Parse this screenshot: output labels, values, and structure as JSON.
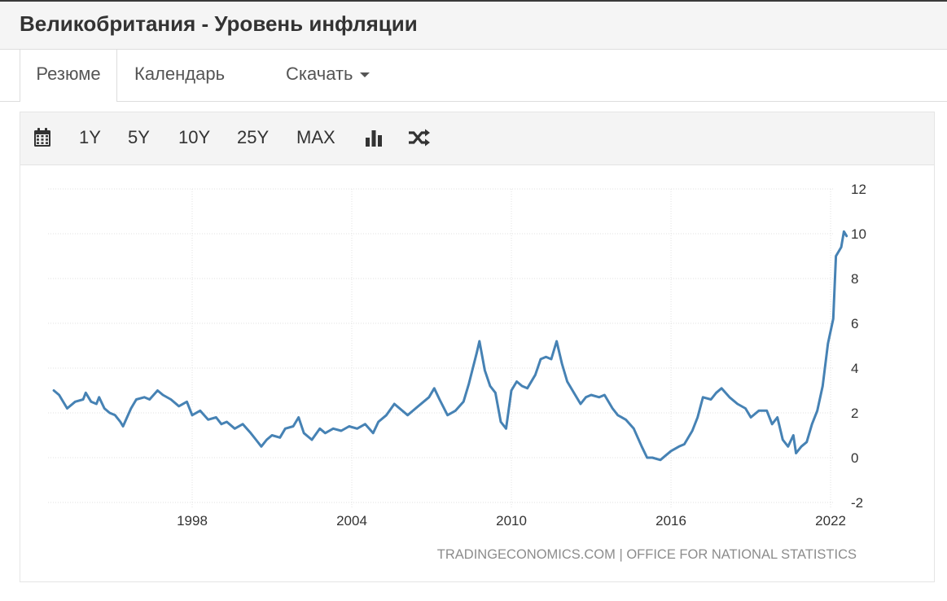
{
  "page": {
    "title": "Великобритания - Уровень инфляции"
  },
  "tabs": [
    {
      "label": "Резюме",
      "active": true
    },
    {
      "label": "Календарь",
      "active": false
    },
    {
      "label": "Скачать",
      "active": false,
      "dropdown": true
    }
  ],
  "toolbar": {
    "icons": [
      "calendar-icon",
      "bar-chart-icon",
      "shuffle-icon"
    ],
    "ranges": [
      "1Y",
      "5Y",
      "10Y",
      "25Y",
      "MAX"
    ]
  },
  "colors": {
    "line": "#4682b4",
    "grid": "#e2e2e2",
    "toolbar_bg": "#f4f4f4",
    "title_bg": "#f5f5f5"
  },
  "chart_data": {
    "type": "line",
    "title": "",
    "xlabel": "",
    "ylabel": "",
    "x_ticks": [
      "1998",
      "2004",
      "2010",
      "2016",
      "2022"
    ],
    "y_ticks": [
      "12",
      "10",
      "8",
      "6",
      "4",
      "2",
      "0",
      "-2"
    ],
    "ylim": [
      -2,
      12
    ],
    "xlim": [
      1992.8,
      2022.6
    ],
    "grid": true,
    "source": "TRADINGECONOMICS.COM | OFFICE FOR NATIONAL STATISTICS",
    "series": [
      {
        "name": "",
        "points": [
          [
            1992.8,
            3.0
          ],
          [
            1993.0,
            2.8
          ],
          [
            1993.3,
            2.2
          ],
          [
            1993.6,
            2.5
          ],
          [
            1993.9,
            2.6
          ],
          [
            1994.0,
            2.9
          ],
          [
            1994.2,
            2.5
          ],
          [
            1994.4,
            2.4
          ],
          [
            1994.5,
            2.7
          ],
          [
            1994.7,
            2.2
          ],
          [
            1994.9,
            2.0
          ],
          [
            1995.1,
            1.9
          ],
          [
            1995.3,
            1.6
          ],
          [
            1995.4,
            1.4
          ],
          [
            1995.7,
            2.2
          ],
          [
            1995.9,
            2.6
          ],
          [
            1996.2,
            2.7
          ],
          [
            1996.4,
            2.6
          ],
          [
            1996.7,
            3.0
          ],
          [
            1996.9,
            2.8
          ],
          [
            1997.2,
            2.6
          ],
          [
            1997.5,
            2.3
          ],
          [
            1997.8,
            2.5
          ],
          [
            1998.0,
            1.9
          ],
          [
            1998.3,
            2.1
          ],
          [
            1998.6,
            1.7
          ],
          [
            1998.9,
            1.8
          ],
          [
            1999.1,
            1.5
          ],
          [
            1999.3,
            1.6
          ],
          [
            1999.6,
            1.3
          ],
          [
            1999.9,
            1.5
          ],
          [
            2000.2,
            1.1
          ],
          [
            2000.4,
            0.8
          ],
          [
            2000.6,
            0.5
          ],
          [
            2000.8,
            0.8
          ],
          [
            2001.0,
            1.0
          ],
          [
            2001.3,
            0.9
          ],
          [
            2001.5,
            1.3
          ],
          [
            2001.8,
            1.4
          ],
          [
            2002.0,
            1.8
          ],
          [
            2002.2,
            1.1
          ],
          [
            2002.5,
            0.8
          ],
          [
            2002.8,
            1.3
          ],
          [
            2003.0,
            1.1
          ],
          [
            2003.3,
            1.3
          ],
          [
            2003.6,
            1.2
          ],
          [
            2003.9,
            1.4
          ],
          [
            2004.2,
            1.3
          ],
          [
            2004.5,
            1.5
          ],
          [
            2004.8,
            1.1
          ],
          [
            2005.0,
            1.6
          ],
          [
            2005.3,
            1.9
          ],
          [
            2005.6,
            2.4
          ],
          [
            2005.9,
            2.1
          ],
          [
            2006.1,
            1.9
          ],
          [
            2006.4,
            2.2
          ],
          [
            2006.7,
            2.5
          ],
          [
            2006.9,
            2.7
          ],
          [
            2007.1,
            3.1
          ],
          [
            2007.3,
            2.6
          ],
          [
            2007.6,
            1.9
          ],
          [
            2007.9,
            2.1
          ],
          [
            2008.2,
            2.5
          ],
          [
            2008.4,
            3.3
          ],
          [
            2008.7,
            4.7
          ],
          [
            2008.8,
            5.2
          ],
          [
            2009.0,
            3.9
          ],
          [
            2009.2,
            3.2
          ],
          [
            2009.4,
            2.9
          ],
          [
            2009.6,
            1.6
          ],
          [
            2009.8,
            1.3
          ],
          [
            2010.0,
            3.0
          ],
          [
            2010.2,
            3.4
          ],
          [
            2010.4,
            3.2
          ],
          [
            2010.6,
            3.1
          ],
          [
            2010.9,
            3.7
          ],
          [
            2011.1,
            4.4
          ],
          [
            2011.3,
            4.5
          ],
          [
            2011.5,
            4.4
          ],
          [
            2011.7,
            5.2
          ],
          [
            2011.9,
            4.2
          ],
          [
            2012.1,
            3.4
          ],
          [
            2012.4,
            2.8
          ],
          [
            2012.6,
            2.4
          ],
          [
            2012.8,
            2.7
          ],
          [
            2013.0,
            2.8
          ],
          [
            2013.3,
            2.7
          ],
          [
            2013.5,
            2.8
          ],
          [
            2013.8,
            2.2
          ],
          [
            2014.0,
            1.9
          ],
          [
            2014.3,
            1.7
          ],
          [
            2014.6,
            1.3
          ],
          [
            2014.9,
            0.5
          ],
          [
            2015.1,
            0.0
          ],
          [
            2015.3,
            0.0
          ],
          [
            2015.6,
            -0.1
          ],
          [
            2015.8,
            0.1
          ],
          [
            2016.0,
            0.3
          ],
          [
            2016.3,
            0.5
          ],
          [
            2016.5,
            0.6
          ],
          [
            2016.8,
            1.2
          ],
          [
            2017.0,
            1.8
          ],
          [
            2017.2,
            2.7
          ],
          [
            2017.5,
            2.6
          ],
          [
            2017.7,
            2.9
          ],
          [
            2017.9,
            3.1
          ],
          [
            2018.2,
            2.7
          ],
          [
            2018.5,
            2.4
          ],
          [
            2018.8,
            2.2
          ],
          [
            2019.0,
            1.8
          ],
          [
            2019.3,
            2.1
          ],
          [
            2019.6,
            2.1
          ],
          [
            2019.8,
            1.5
          ],
          [
            2020.0,
            1.8
          ],
          [
            2020.2,
            0.8
          ],
          [
            2020.4,
            0.5
          ],
          [
            2020.6,
            1.0
          ],
          [
            2020.7,
            0.2
          ],
          [
            2020.9,
            0.5
          ],
          [
            2021.1,
            0.7
          ],
          [
            2021.3,
            1.5
          ],
          [
            2021.5,
            2.1
          ],
          [
            2021.7,
            3.2
          ],
          [
            2021.9,
            5.1
          ],
          [
            2022.1,
            6.2
          ],
          [
            2022.2,
            9.0
          ],
          [
            2022.4,
            9.4
          ],
          [
            2022.5,
            10.1
          ],
          [
            2022.6,
            9.9
          ]
        ]
      }
    ]
  }
}
